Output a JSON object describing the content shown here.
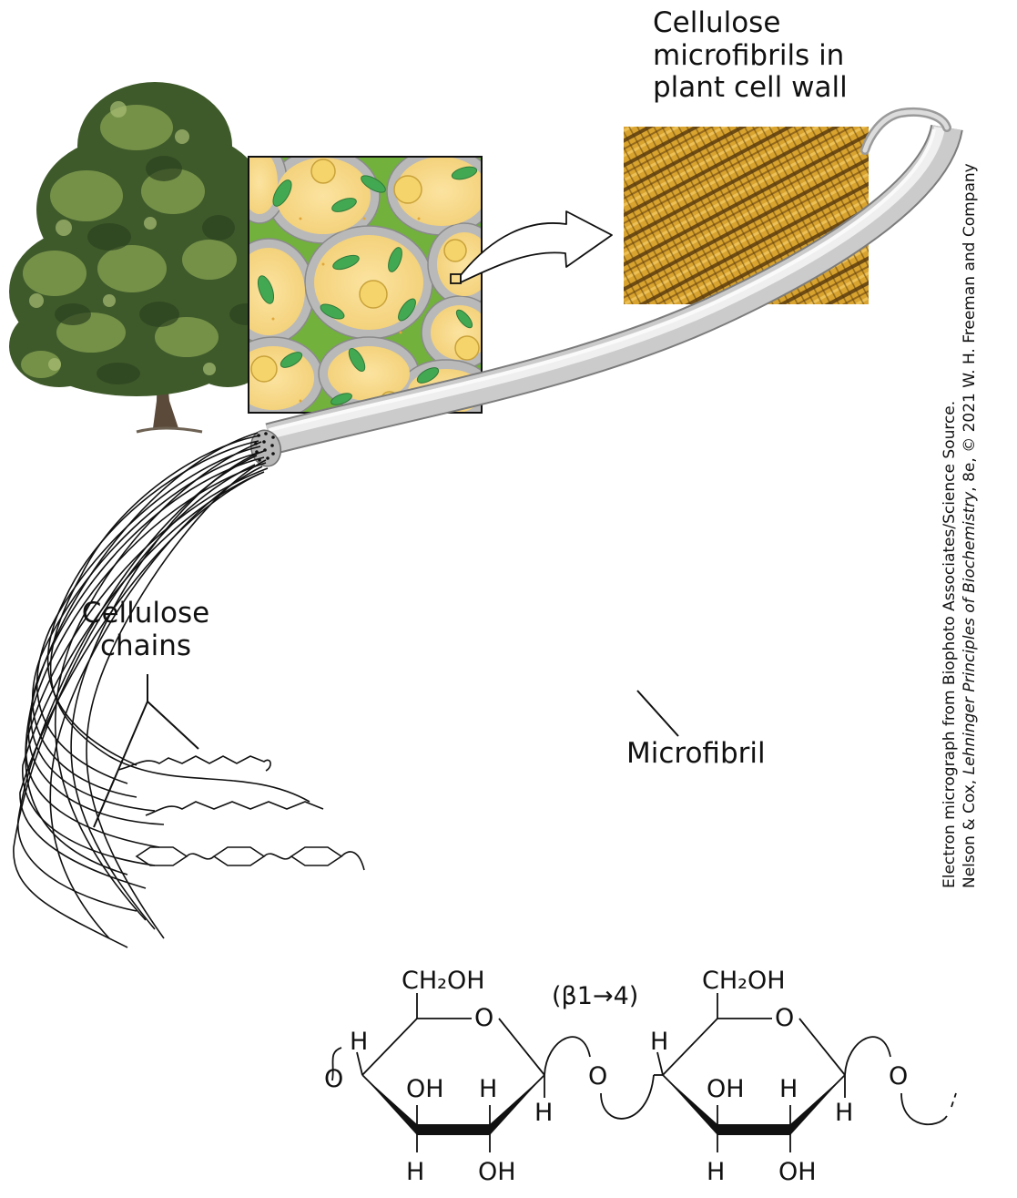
{
  "labels": {
    "micrograph_title": [
      "Cellulose",
      "microfibrils in",
      "plant cell wall"
    ],
    "chains_label": [
      "Cellulose",
      "chains"
    ],
    "microfibril_label": "Microfibril",
    "linkage_label": "(β1→4)"
  },
  "credit": {
    "line1": "Electron micrograph from Biophoto Associates/Science Source.",
    "line2_prefix": "Nelson & Cox, ",
    "line2_title": "Lehninger Principles of Biochemistry",
    "line2_suffix": ", 8e, © 2021 W. H. Freeman and Company"
  },
  "chemistry": {
    "units": [
      {
        "ch2oh": "CH₂OH",
        "ring_o": "O",
        "h_left": "H",
        "oh_mid": "OH",
        "h_mid": "H",
        "h_right": "H",
        "h_bottom": "H",
        "oh_bottom": "OH",
        "glyco_o": "O"
      },
      {
        "ch2oh": "CH₂OH",
        "ring_o": "O",
        "h_left": "H",
        "oh_mid": "OH",
        "h_mid": "H",
        "h_right": "H",
        "h_bottom": "H",
        "oh_bottom": "OH",
        "glyco_o": "O"
      }
    ],
    "start_o": "O"
  },
  "colors": {
    "foliage_dark": "#3f5a2a",
    "foliage_light": "#7f9b4e",
    "trunk": "#5b4a3a",
    "cell_fill": "#f7d888",
    "cell_wall": "#b9b9b9",
    "middle_lamella": "#7cc243",
    "chloroplast": "#43a852",
    "micrograph_base": "#d9a32e",
    "fibril_grey": "#c9c9c9"
  }
}
